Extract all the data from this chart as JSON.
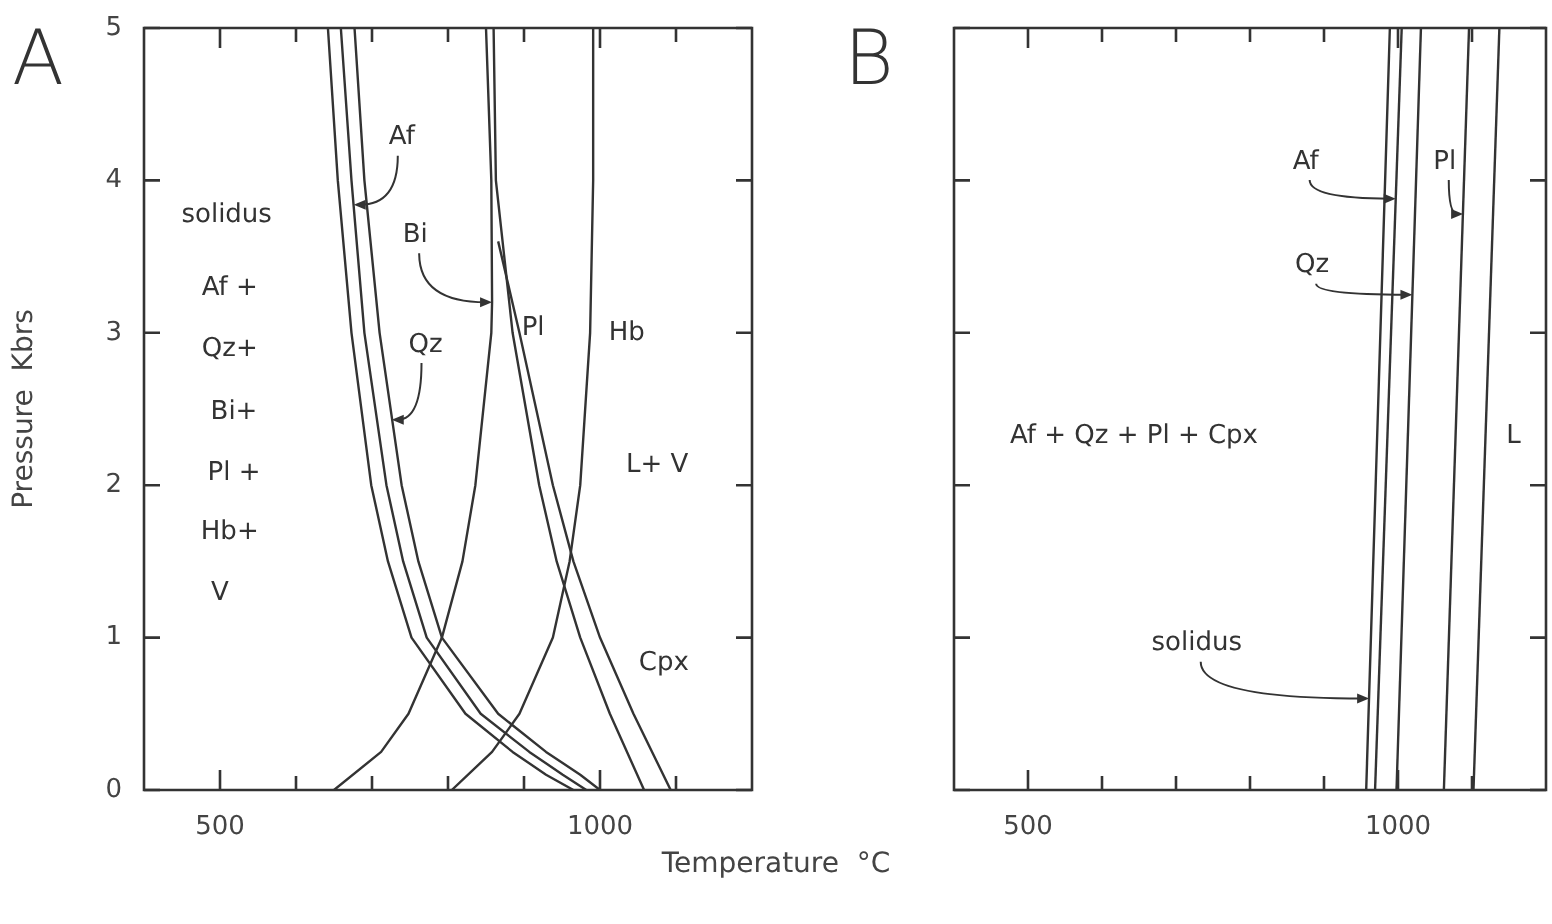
{
  "chart_data": [
    {
      "type": "line",
      "title": "A",
      "xlabel": "Temperature  °C",
      "ylabel": "Pressure  Kbrs",
      "xlim": [
        400,
        1200
      ],
      "ylim": [
        0,
        5
      ],
      "xticks": [
        {
          "value": 500,
          "label": "500"
        },
        {
          "value": 600,
          "label": null
        },
        {
          "value": 700,
          "label": null
        },
        {
          "value": 800,
          "label": null
        },
        {
          "value": 900,
          "label": null
        },
        {
          "value": 1000,
          "label": "1000"
        },
        {
          "value": 1100,
          "label": null
        }
      ],
      "yticks": [
        0,
        1,
        2,
        3,
        4,
        5
      ],
      "series": [
        {
          "color": "#333333",
          "x": [
            642,
            655,
            673,
            699,
            721,
            752,
            823,
            885,
            929,
            965
          ],
          "values": [
            5,
            4,
            3,
            2,
            1.5,
            1,
            0.5,
            0.25,
            0.1,
            0
          ]
        },
        {
          "color": "#333333",
          "x": [
            659,
            673,
            690,
            719,
            741,
            772,
            843,
            907,
            951,
            982
          ],
          "values": [
            5,
            4,
            3,
            2,
            1.5,
            1,
            0.5,
            0.25,
            0.1,
            0
          ]
        },
        {
          "color": "#333333",
          "x": [
            677,
            690,
            710,
            739,
            761,
            792,
            866,
            929,
            974,
            1000
          ],
          "values": [
            5,
            4,
            3,
            2,
            1.5,
            1,
            0.5,
            0.25,
            0.1,
            0
          ]
        },
        {
          "color": "#333333",
          "x": [
            850,
            857,
            858,
            857,
            836,
            819,
            792,
            748,
            712,
            650
          ],
          "values": [
            5,
            4,
            3.2,
            3,
            2,
            1.5,
            1,
            0.5,
            0.25,
            0
          ]
        },
        {
          "color": "#333333",
          "x": [
            860,
            863,
            885,
            920,
            943,
            974,
            1013,
            1058
          ],
          "values": [
            5,
            4,
            3,
            2,
            1.5,
            1,
            0.5,
            0
          ]
        },
        {
          "color": "#333333",
          "x": [
            866,
            894,
            938,
            965,
            1000,
            1044,
            1093
          ],
          "values": [
            3.6,
            3,
            2,
            1.5,
            1,
            0.5,
            0
          ]
        },
        {
          "color": "#333333",
          "x": [
            991,
            991,
            987,
            974,
            960,
            938,
            894,
            858,
            805
          ],
          "values": [
            5,
            4,
            3,
            2,
            1.5,
            1,
            0.5,
            0.25,
            0
          ]
        }
      ],
      "annotations": [
        "solidus",
        "Af +",
        "Qz+",
        "Bi+",
        "Pl +",
        "Hb+",
        "V",
        {
          "text": "Af",
          "x": 676,
          "y": 3.84
        },
        {
          "text": "Bi",
          "x": 858,
          "y": 3.2
        },
        {
          "text": "Qz",
          "x": 726,
          "y": 2.43
        },
        "Pl",
        "Hb",
        "L+ V",
        "Cpx"
      ]
    },
    {
      "type": "line",
      "title": "B",
      "xlim": [
        400,
        1200
      ],
      "ylim": [
        0,
        5
      ],
      "tick_labels": "x",
      "xticks": [
        {
          "value": 500,
          "label": "500"
        },
        {
          "value": 600,
          "label": null
        },
        {
          "value": 700,
          "label": null
        },
        {
          "value": 800,
          "label": null
        },
        {
          "value": 900,
          "label": null
        },
        {
          "value": 1000,
          "label": "1000"
        },
        {
          "value": 1100,
          "label": null
        }
      ],
      "yticks": [
        {
          "value": 0,
          "label": null
        },
        {
          "value": 1,
          "label": null
        },
        {
          "value": 2,
          "label": null
        },
        {
          "value": 3,
          "label": null
        },
        {
          "value": 4,
          "label": null
        },
        {
          "value": 5,
          "label": null
        }
      ],
      "series": [
        {
          "color": "#333333",
          "x": [
            957,
            989
          ],
          "values": [
            0,
            5
          ]
        },
        {
          "color": "#333333",
          "x": [
            969,
            1005
          ],
          "values": [
            0,
            5
          ]
        },
        {
          "color": "#333333",
          "x": [
            998,
            1031
          ],
          "values": [
            0,
            5
          ]
        },
        {
          "color": "#333333",
          "x": [
            1062,
            1096
          ],
          "values": [
            0,
            5
          ]
        },
        {
          "color": "#333333",
          "x": [
            1102,
            1137
          ],
          "values": [
            0,
            5
          ]
        }
      ],
      "annotations": [
        {
          "text": "Af",
          "x": 997,
          "y": 3.88
        },
        {
          "text": "Pl",
          "x": 1088,
          "y": 3.78
        },
        {
          "text": "Qz",
          "x": 1019.5,
          "y": 3.25
        },
        "Af + Qz + Pl + Cpx",
        "L",
        {
          "text": "solidus",
          "x": 961,
          "y": 0.6
        }
      ]
    }
  ]
}
